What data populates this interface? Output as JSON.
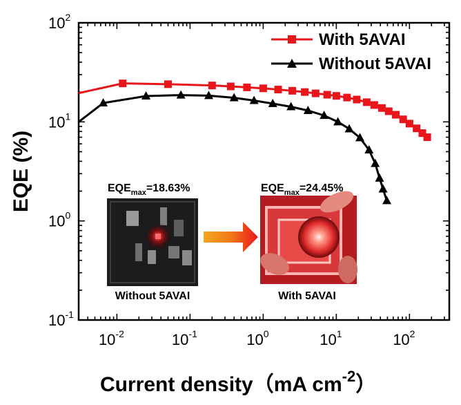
{
  "chart_data": {
    "type": "line",
    "xlabel": "Current density（mA cm",
    "xlabel_sup": "-2",
    "xlabel_close": "）",
    "ylabel": "EQE (%)",
    "x_scale": "log",
    "y_scale": "log",
    "xlim": [
      0.003,
      350
    ],
    "ylim": [
      0.1,
      100
    ],
    "x_ticks": [
      {
        "base": "10",
        "exp": "-2",
        "value": 0.01
      },
      {
        "base": "10",
        "exp": "-1",
        "value": 0.1
      },
      {
        "base": "10",
        "exp": "0",
        "value": 1
      },
      {
        "base": "10",
        "exp": "1",
        "value": 10
      },
      {
        "base": "10",
        "exp": "2",
        "value": 100
      }
    ],
    "y_ticks": [
      {
        "base": "10",
        "exp": "-1",
        "value": 0.1
      },
      {
        "base": "10",
        "exp": "0",
        "value": 1
      },
      {
        "base": "10",
        "exp": "1",
        "value": 10
      },
      {
        "base": "10",
        "exp": "2",
        "value": 100
      }
    ],
    "legend_position": "top-right",
    "grid": false,
    "series": [
      {
        "name": "With 5AVAI",
        "color": "#e8161b",
        "marker": "square",
        "x": [
          0.003,
          0.012,
          0.05,
          0.2,
          0.36,
          0.6,
          1.0,
          1.6,
          2.5,
          3.7,
          5.2,
          7.5,
          10.0,
          14.0,
          19.0,
          26.0,
          33.0,
          42.0,
          52.0,
          65.0,
          82.0,
          100.0,
          125.0,
          150.0,
          175.0
        ],
        "y": [
          19.5,
          24.45,
          24.0,
          23.3,
          22.8,
          22.3,
          21.8,
          21.2,
          20.6,
          20.0,
          19.4,
          18.8,
          18.3,
          17.6,
          16.8,
          15.8,
          14.8,
          13.8,
          12.8,
          11.8,
          10.6,
          9.6,
          8.6,
          7.7,
          7.0
        ]
      },
      {
        "name": "Without 5AVAI",
        "color": "#000000",
        "marker": "triangle",
        "x": [
          0.003,
          0.0065,
          0.025,
          0.075,
          0.18,
          0.4,
          0.75,
          1.35,
          2.4,
          4.1,
          6.8,
          10.5,
          15.0,
          21.0,
          28.0,
          34.0,
          39.0,
          43.5,
          49.0
        ],
        "y": [
          10.0,
          15.5,
          18.2,
          18.63,
          18.4,
          17.5,
          16.4,
          15.3,
          14.2,
          13.0,
          11.6,
          10.0,
          8.5,
          6.9,
          5.2,
          3.8,
          2.7,
          2.1,
          1.6
        ]
      }
    ],
    "annotations": {
      "left_label_main": "EQE",
      "left_label_sub": "max",
      "left_label_value": "=18.63%",
      "left_label_color": "#000000",
      "right_label_main": "EQE",
      "right_label_sub": "max",
      "right_label_value": "=24.45%",
      "right_label_color": "#e8161b",
      "left_caption": "Without 5AVAI",
      "left_caption_color": "#000000",
      "right_caption": "With 5AVAI",
      "right_caption_color": "#e8161b"
    }
  }
}
